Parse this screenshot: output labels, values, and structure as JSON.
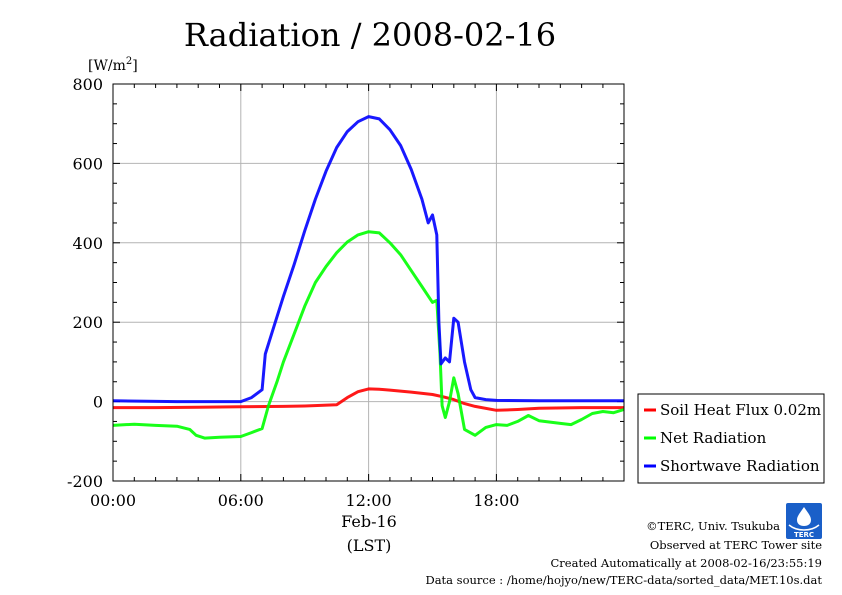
{
  "chart_data": {
    "type": "line",
    "title": "Radiation / 2008-02-16",
    "ylabel": "[W/m2]",
    "ylabel_base": "[W/m",
    "ylabel_sup": "2",
    "ylabel_close": "]",
    "ylim": [
      -200,
      800
    ],
    "yticks": [
      -200,
      0,
      200,
      400,
      600,
      800
    ],
    "xlim": [
      0,
      23.99
    ],
    "xticks": [
      {
        "x": 0,
        "label": "00:00"
      },
      {
        "x": 6,
        "label": "06:00"
      },
      {
        "x": 12,
        "label": "12:00"
      },
      {
        "x": 18,
        "label": "18:00"
      }
    ],
    "xlabel_date": "Feb-16",
    "xlabel": "(LST)",
    "grid": true,
    "legend_position": "bottom-right outside",
    "series": [
      {
        "name": "Soil Heat Flux 0.02m",
        "color": "#ff0000",
        "points": [
          [
            0,
            -15
          ],
          [
            2,
            -15
          ],
          [
            4,
            -14
          ],
          [
            6,
            -13
          ],
          [
            8,
            -12
          ],
          [
            9,
            -11
          ],
          [
            10.5,
            -8
          ],
          [
            11,
            10
          ],
          [
            11.5,
            25
          ],
          [
            12,
            32
          ],
          [
            12.5,
            31
          ],
          [
            13,
            29
          ],
          [
            14,
            24
          ],
          [
            15,
            18
          ],
          [
            15.5,
            12
          ],
          [
            16,
            5
          ],
          [
            16.5,
            -5
          ],
          [
            17,
            -12
          ],
          [
            18,
            -22
          ],
          [
            19,
            -20
          ],
          [
            20,
            -17
          ],
          [
            22,
            -15
          ],
          [
            23.99,
            -15
          ]
        ]
      },
      {
        "name": "Net Radiation",
        "color": "#00ff00",
        "points": [
          [
            0,
            -60
          ],
          [
            1,
            -57
          ],
          [
            2,
            -60
          ],
          [
            3,
            -62
          ],
          [
            3.6,
            -70
          ],
          [
            3.9,
            -85
          ],
          [
            4.3,
            -92
          ],
          [
            5,
            -90
          ],
          [
            6,
            -88
          ],
          [
            6.5,
            -78
          ],
          [
            7,
            -68
          ],
          [
            7.3,
            -10
          ],
          [
            7.7,
            50
          ],
          [
            8,
            100
          ],
          [
            8.5,
            170
          ],
          [
            9,
            240
          ],
          [
            9.5,
            300
          ],
          [
            10,
            340
          ],
          [
            10.5,
            375
          ],
          [
            11,
            402
          ],
          [
            11.5,
            420
          ],
          [
            12,
            428
          ],
          [
            12.5,
            425
          ],
          [
            13,
            400
          ],
          [
            13.5,
            370
          ],
          [
            14,
            330
          ],
          [
            14.5,
            290
          ],
          [
            15,
            250
          ],
          [
            15.2,
            255
          ],
          [
            15.35,
            120
          ],
          [
            15.45,
            -10
          ],
          [
            15.6,
            -40
          ],
          [
            15.8,
            0
          ],
          [
            16,
            60
          ],
          [
            16.2,
            20
          ],
          [
            16.5,
            -70
          ],
          [
            17,
            -85
          ],
          [
            17.5,
            -65
          ],
          [
            18,
            -58
          ],
          [
            18.5,
            -60
          ],
          [
            19,
            -50
          ],
          [
            19.5,
            -35
          ],
          [
            20,
            -48
          ],
          [
            21,
            -55
          ],
          [
            21.5,
            -58
          ],
          [
            22,
            -45
          ],
          [
            22.5,
            -30
          ],
          [
            23,
            -25
          ],
          [
            23.5,
            -28
          ],
          [
            23.99,
            -20
          ]
        ]
      },
      {
        "name": "Shortwave Radiation",
        "color": "#0000ff",
        "points": [
          [
            0,
            2
          ],
          [
            3,
            0
          ],
          [
            5,
            0
          ],
          [
            6,
            0
          ],
          [
            6.5,
            10
          ],
          [
            7,
            30
          ],
          [
            7.15,
            120
          ],
          [
            7.5,
            180
          ],
          [
            8,
            265
          ],
          [
            8.5,
            345
          ],
          [
            9,
            430
          ],
          [
            9.5,
            510
          ],
          [
            10,
            580
          ],
          [
            10.5,
            640
          ],
          [
            11,
            680
          ],
          [
            11.5,
            705
          ],
          [
            12,
            718
          ],
          [
            12.5,
            712
          ],
          [
            13,
            685
          ],
          [
            13.5,
            645
          ],
          [
            14,
            585
          ],
          [
            14.5,
            510
          ],
          [
            14.8,
            450
          ],
          [
            15,
            470
          ],
          [
            15.2,
            420
          ],
          [
            15.3,
            200
          ],
          [
            15.4,
            95
          ],
          [
            15.6,
            110
          ],
          [
            15.8,
            100
          ],
          [
            16,
            210
          ],
          [
            16.2,
            200
          ],
          [
            16.5,
            100
          ],
          [
            16.8,
            30
          ],
          [
            17,
            10
          ],
          [
            17.5,
            5
          ],
          [
            18,
            3
          ],
          [
            20,
            2
          ],
          [
            23.99,
            2
          ]
        ]
      }
    ]
  },
  "credits": {
    "copyright": "©TERC, Univ. Tsukuba",
    "observed": "Observed at TERC Tower site",
    "created": "Created Automatically at 2008-02-16/23:55:19",
    "source": "Data source : /home/hojyo/new/TERC-data/sorted_data/MET.10s.dat",
    "logo_text": "TERC"
  },
  "colors": {
    "logo": "#1a5fc8",
    "grid": "#b4b4b4"
  }
}
